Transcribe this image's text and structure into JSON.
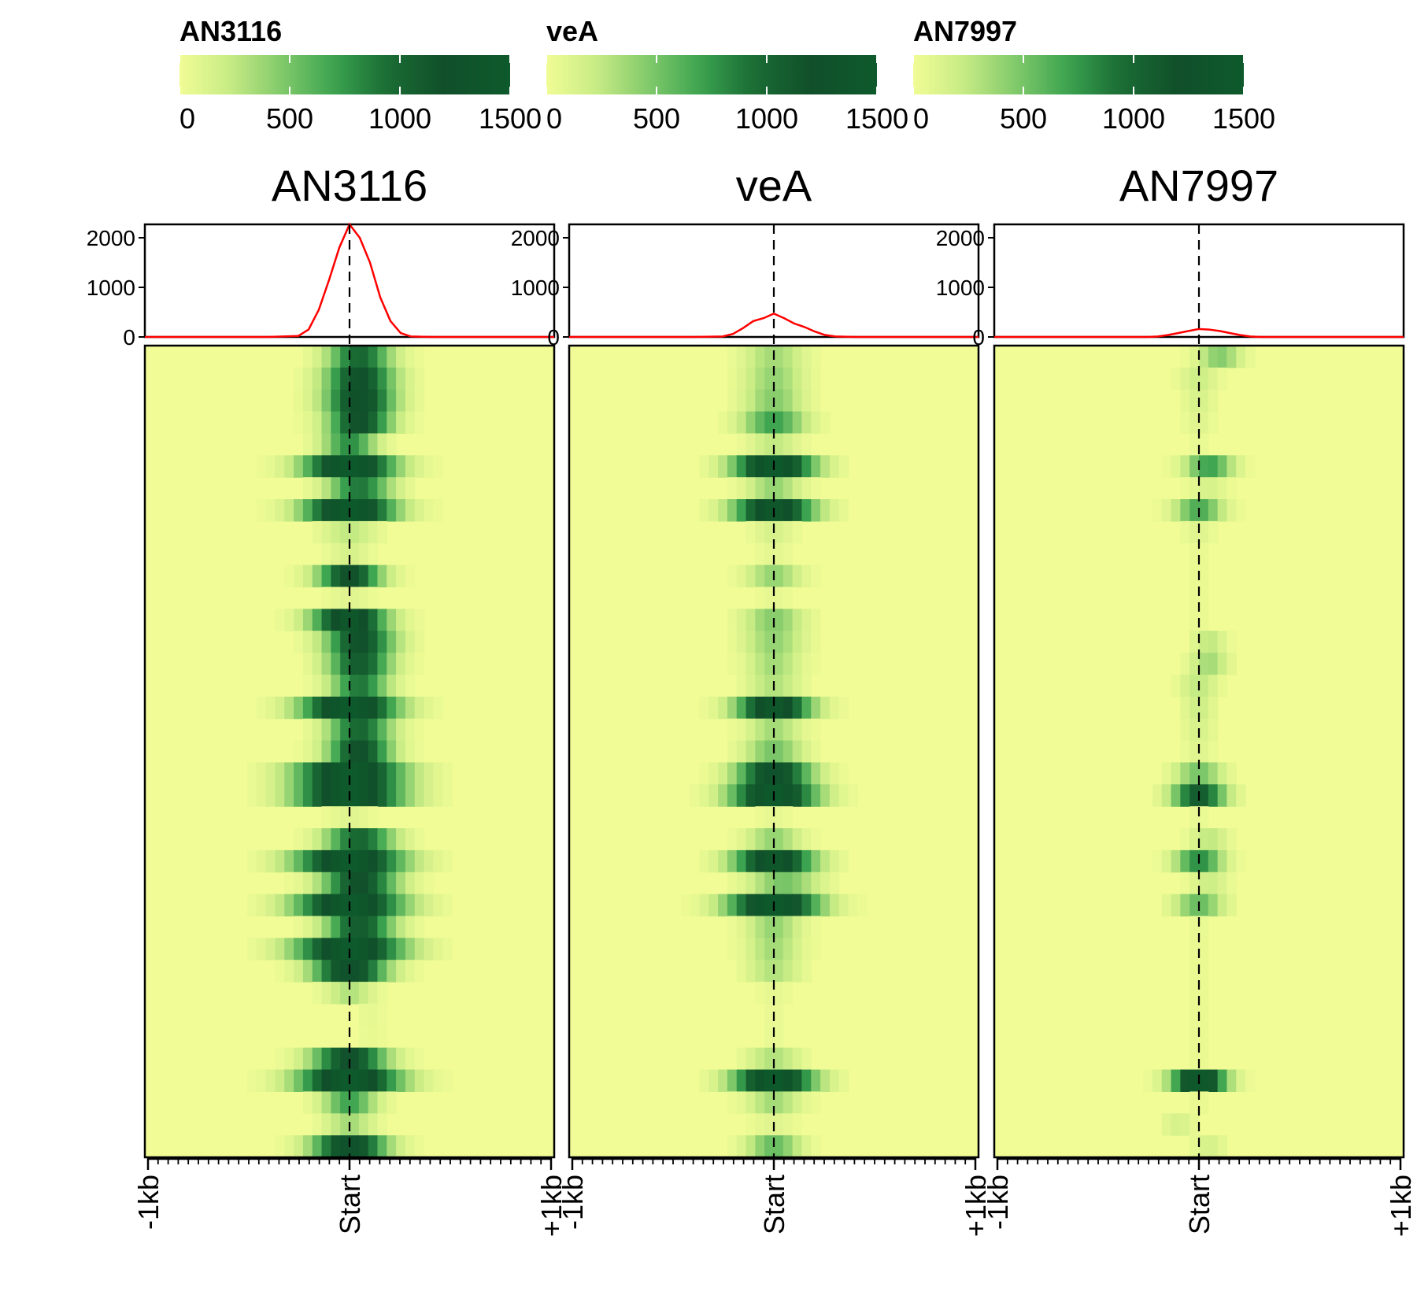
{
  "colors": {
    "background": "#ffffff",
    "heat_low": "#f1fc96",
    "heat_high": "#0e5a2c",
    "profile_line": "#ff0000",
    "axis": "#000000"
  },
  "colorscale": {
    "ticks": [
      0,
      500,
      1000,
      1500
    ]
  },
  "profile_axis": {
    "ticks": [
      0,
      1000,
      2000
    ]
  },
  "x_tick_labels": [
    "-1kb",
    "Start",
    "+1kb"
  ],
  "chart_data": [
    {
      "type": "heatmap",
      "title": "AN3116",
      "legend_title": "AN3116",
      "colorscale_range": [
        0,
        1500
      ],
      "profile": {
        "x": [
          -1.0,
          -0.8,
          -0.6,
          -0.4,
          -0.25,
          -0.2,
          -0.15,
          -0.1,
          -0.05,
          0.0,
          0.05,
          0.1,
          0.15,
          0.2,
          0.25,
          0.3,
          0.4,
          0.6,
          0.8,
          1.0
        ],
        "y": [
          0,
          0,
          0,
          0,
          20,
          150,
          550,
          1150,
          1800,
          2270,
          2000,
          1500,
          800,
          320,
          80,
          10,
          0,
          0,
          0,
          0
        ],
        "ylim": [
          0,
          2270
        ]
      },
      "rows": [
        {
          "peak": 1000,
          "offset": 0.05,
          "width": 1.2
        },
        {
          "peak": 1200,
          "offset": 0.05,
          "width": 1.3
        },
        {
          "peak": 1300,
          "offset": 0.05,
          "width": 1.3
        },
        {
          "peak": 1200,
          "offset": 0.05,
          "width": 1.2
        },
        {
          "peak": 800,
          "offset": 0.0,
          "width": 1.0
        },
        {
          "peak": 1500,
          "offset": 0.0,
          "width": 1.7
        },
        {
          "peak": 900,
          "offset": 0.05,
          "width": 1.2
        },
        {
          "peak": 1500,
          "offset": 0.0,
          "width": 1.7
        },
        {
          "peak": 250,
          "offset": 0.0,
          "width": 1.0
        },
        {
          "peak": 150,
          "offset": 0.0,
          "width": 0.8
        },
        {
          "peak": 1200,
          "offset": 0.0,
          "width": 1.2
        },
        {
          "peak": 100,
          "offset": 0.0,
          "width": 0.8
        },
        {
          "peak": 1400,
          "offset": 0.0,
          "width": 1.4
        },
        {
          "peak": 1200,
          "offset": 0.05,
          "width": 1.3
        },
        {
          "peak": 1100,
          "offset": 0.05,
          "width": 1.2
        },
        {
          "peak": 900,
          "offset": 0.05,
          "width": 1.1
        },
        {
          "peak": 1500,
          "offset": 0.0,
          "width": 1.8
        },
        {
          "peak": 1000,
          "offset": 0.05,
          "width": 1.2
        },
        {
          "peak": 1200,
          "offset": 0.05,
          "width": 1.2
        },
        {
          "peak": 1500,
          "offset": 0.0,
          "width": 2.0
        },
        {
          "peak": 1500,
          "offset": 0.0,
          "width": 2.0
        },
        {
          "peak": 100,
          "offset": 0.0,
          "width": 0.8
        },
        {
          "peak": 1000,
          "offset": 0.05,
          "width": 1.3
        },
        {
          "peak": 1500,
          "offset": 0.0,
          "width": 2.0
        },
        {
          "peak": 1200,
          "offset": 0.05,
          "width": 1.4
        },
        {
          "peak": 1500,
          "offset": 0.0,
          "width": 2.0
        },
        {
          "peak": 1100,
          "offset": 0.05,
          "width": 1.3
        },
        {
          "peak": 1500,
          "offset": 0.0,
          "width": 2.0
        },
        {
          "peak": 1300,
          "offset": 0.0,
          "width": 1.4
        },
        {
          "peak": 300,
          "offset": 0.0,
          "width": 0.9
        },
        {
          "peak": 60,
          "offset": 0.1,
          "width": 0.6
        },
        {
          "peak": 50,
          "offset": 0.1,
          "width": 0.6
        },
        {
          "peak": 1200,
          "offset": 0.0,
          "width": 1.4
        },
        {
          "peak": 1500,
          "offset": 0.0,
          "width": 1.9
        },
        {
          "peak": 700,
          "offset": 0.0,
          "width": 1.0
        },
        {
          "peak": 350,
          "offset": 0.0,
          "width": 0.9
        },
        {
          "peak": 1300,
          "offset": 0.0,
          "width": 1.4
        }
      ]
    },
    {
      "type": "heatmap",
      "title": "veA",
      "legend_title": "veA",
      "colorscale_range": [
        0,
        1500
      ],
      "profile": {
        "x": [
          -1.0,
          -0.8,
          -0.6,
          -0.4,
          -0.25,
          -0.2,
          -0.15,
          -0.1,
          -0.05,
          0.0,
          0.05,
          0.1,
          0.15,
          0.2,
          0.25,
          0.3,
          0.4,
          0.6,
          0.8,
          1.0
        ],
        "y": [
          0,
          0,
          0,
          0,
          10,
          60,
          180,
          320,
          380,
          470,
          380,
          270,
          200,
          110,
          40,
          10,
          0,
          0,
          0,
          0
        ],
        "ylim": [
          0,
          2270
        ]
      },
      "rows": [
        {
          "peak": 350,
          "offset": 0.0,
          "width": 1.1
        },
        {
          "peak": 400,
          "offset": 0.0,
          "width": 1.1
        },
        {
          "peak": 450,
          "offset": 0.0,
          "width": 1.1
        },
        {
          "peak": 700,
          "offset": 0.0,
          "width": 1.2
        },
        {
          "peak": 250,
          "offset": 0.0,
          "width": 0.9
        },
        {
          "peak": 1500,
          "offset": 0.0,
          "width": 1.5
        },
        {
          "peak": 400,
          "offset": 0.0,
          "width": 1.0
        },
        {
          "peak": 1400,
          "offset": 0.0,
          "width": 1.5
        },
        {
          "peak": 150,
          "offset": 0.0,
          "width": 0.8
        },
        {
          "peak": 80,
          "offset": 0.0,
          "width": 0.6
        },
        {
          "peak": 400,
          "offset": 0.0,
          "width": 1.0
        },
        {
          "peak": 60,
          "offset": 0.0,
          "width": 0.6
        },
        {
          "peak": 450,
          "offset": 0.0,
          "width": 1.1
        },
        {
          "peak": 400,
          "offset": 0.0,
          "width": 1.1
        },
        {
          "peak": 350,
          "offset": 0.0,
          "width": 1.0
        },
        {
          "peak": 300,
          "offset": 0.0,
          "width": 1.0
        },
        {
          "peak": 1400,
          "offset": 0.0,
          "width": 1.4
        },
        {
          "peak": 350,
          "offset": 0.0,
          "width": 1.0
        },
        {
          "peak": 500,
          "offset": 0.0,
          "width": 1.1
        },
        {
          "peak": 1300,
          "offset": 0.0,
          "width": 1.4
        },
        {
          "peak": 1500,
          "offset": 0.0,
          "width": 1.6
        },
        {
          "peak": 60,
          "offset": 0.0,
          "width": 0.6
        },
        {
          "peak": 400,
          "offset": 0.0,
          "width": 1.0
        },
        {
          "peak": 1400,
          "offset": 0.0,
          "width": 1.5
        },
        {
          "peak": 500,
          "offset": 0.05,
          "width": 1.3
        },
        {
          "peak": 1500,
          "offset": 0.0,
          "width": 1.7
        },
        {
          "peak": 400,
          "offset": 0.0,
          "width": 1.0
        },
        {
          "peak": 350,
          "offset": 0.0,
          "width": 1.0
        },
        {
          "peak": 300,
          "offset": 0.0,
          "width": 1.0
        },
        {
          "peak": 60,
          "offset": 0.0,
          "width": 0.6
        },
        {
          "peak": 40,
          "offset": 0.0,
          "width": 0.6
        },
        {
          "peak": 50,
          "offset": 0.0,
          "width": 0.6
        },
        {
          "peak": 300,
          "offset": 0.0,
          "width": 1.0
        },
        {
          "peak": 1500,
          "offset": 0.0,
          "width": 1.5
        },
        {
          "peak": 350,
          "offset": 0.0,
          "width": 1.0
        },
        {
          "peak": 100,
          "offset": 0.0,
          "width": 0.8
        },
        {
          "peak": 550,
          "offset": 0.0,
          "width": 1.0
        }
      ]
    },
    {
      "type": "heatmap",
      "title": "AN7997",
      "legend_title": "AN7997",
      "colorscale_range": [
        0,
        1500
      ],
      "profile": {
        "x": [
          -1.0,
          -0.8,
          -0.6,
          -0.4,
          -0.25,
          -0.2,
          -0.15,
          -0.1,
          -0.05,
          0.0,
          0.05,
          0.1,
          0.15,
          0.2,
          0.25,
          0.3,
          0.4,
          0.6,
          0.8,
          1.0
        ],
        "y": [
          0,
          0,
          0,
          0,
          0,
          10,
          40,
          80,
          120,
          160,
          150,
          120,
          80,
          40,
          10,
          0,
          0,
          0,
          0,
          0
        ],
        "ylim": [
          0,
          2270
        ]
      },
      "rows": [
        {
          "peak": 450,
          "offset": 0.1,
          "width": 0.8
        },
        {
          "peak": 200,
          "offset": 0.0,
          "width": 0.7
        },
        {
          "peak": 150,
          "offset": 0.0,
          "width": 0.6
        },
        {
          "peak": 100,
          "offset": 0.0,
          "width": 0.6
        },
        {
          "peak": 50,
          "offset": 0.0,
          "width": 0.5
        },
        {
          "peak": 700,
          "offset": 0.05,
          "width": 0.9
        },
        {
          "peak": 150,
          "offset": 0.05,
          "width": 0.7
        },
        {
          "peak": 650,
          "offset": 0.0,
          "width": 0.9
        },
        {
          "peak": 100,
          "offset": 0.0,
          "width": 0.6
        },
        {
          "peak": 40,
          "offset": 0.0,
          "width": 0.5
        },
        {
          "peak": 40,
          "offset": 0.0,
          "width": 0.5
        },
        {
          "peak": 40,
          "offset": 0.0,
          "width": 0.5
        },
        {
          "peak": 40,
          "offset": 0.0,
          "width": 0.5
        },
        {
          "peak": 250,
          "offset": 0.05,
          "width": 0.6
        },
        {
          "peak": 350,
          "offset": 0.05,
          "width": 0.7
        },
        {
          "peak": 250,
          "offset": 0.0,
          "width": 0.7
        },
        {
          "peak": 200,
          "offset": 0.0,
          "width": 0.6
        },
        {
          "peak": 150,
          "offset": 0.0,
          "width": 0.6
        },
        {
          "peak": 100,
          "offset": 0.0,
          "width": 0.6
        },
        {
          "peak": 500,
          "offset": 0.0,
          "width": 0.9
        },
        {
          "peak": 1100,
          "offset": 0.0,
          "width": 1.0
        },
        {
          "peak": 50,
          "offset": 0.0,
          "width": 0.5
        },
        {
          "peak": 250,
          "offset": 0.05,
          "width": 0.7
        },
        {
          "peak": 800,
          "offset": 0.0,
          "width": 0.9
        },
        {
          "peak": 200,
          "offset": 0.05,
          "width": 0.7
        },
        {
          "peak": 550,
          "offset": 0.0,
          "width": 0.9
        },
        {
          "peak": 50,
          "offset": 0.0,
          "width": 0.5
        },
        {
          "peak": 40,
          "offset": 0.0,
          "width": 0.5
        },
        {
          "peak": 40,
          "offset": 0.0,
          "width": 0.5
        },
        {
          "peak": 40,
          "offset": 0.0,
          "width": 0.5
        },
        {
          "peak": 40,
          "offset": 0.0,
          "width": 0.5
        },
        {
          "peak": 40,
          "offset": 0.0,
          "width": 0.5
        },
        {
          "peak": 40,
          "offset": 0.0,
          "width": 0.5
        },
        {
          "peak": 1500,
          "offset": 0.0,
          "width": 1.0
        },
        {
          "peak": 40,
          "offset": 0.0,
          "width": 0.5
        },
        {
          "peak": 150,
          "offset": -0.1,
          "width": 0.6
        },
        {
          "peak": 150,
          "offset": 0.05,
          "width": 0.6
        }
      ]
    }
  ]
}
